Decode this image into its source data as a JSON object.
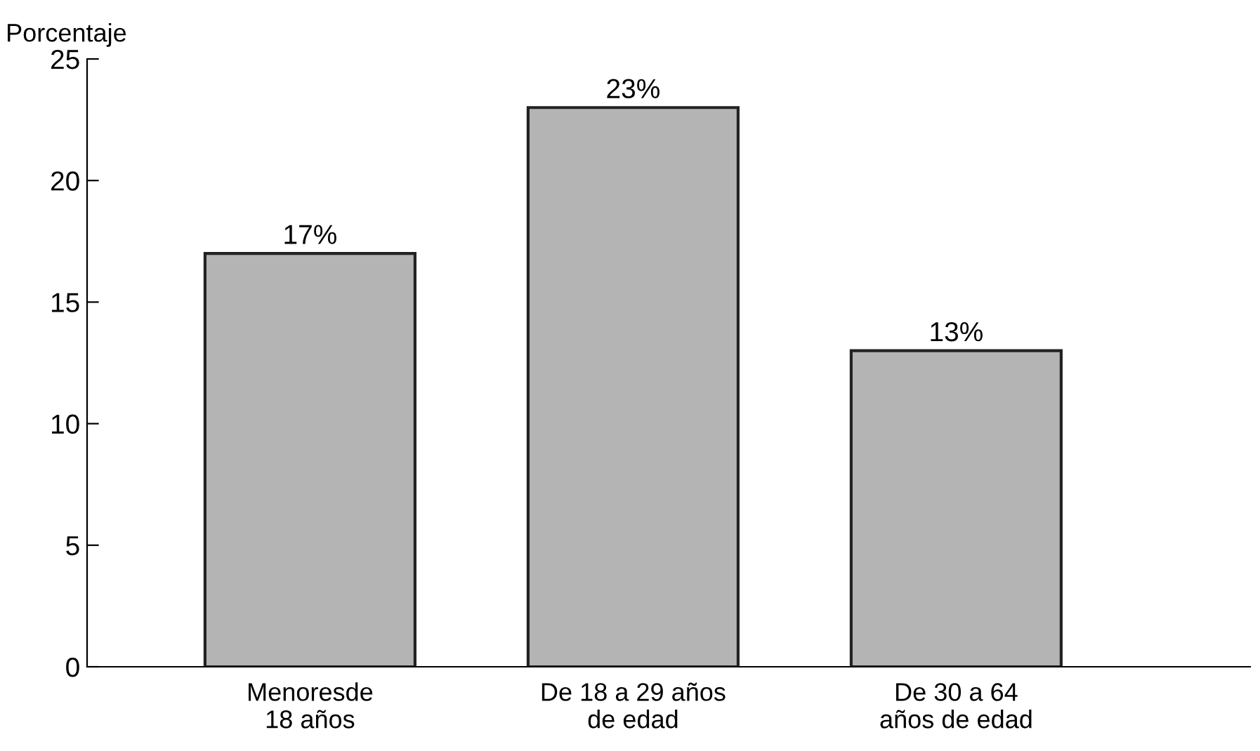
{
  "chart_data": {
    "type": "bar",
    "ylabel": "Porcentaje",
    "categories": [
      "Menoresde\n18 años",
      "De 18 a 29 años\nde edad",
      "De 30 a 64\naños de edad"
    ],
    "values": [
      17,
      23,
      13
    ],
    "color": "#b4b4b4",
    "value_labels": [
      "17%",
      "23%",
      "13%"
    ],
    "ylim": [
      0,
      25
    ],
    "yticks": [
      0,
      5,
      10,
      15,
      20,
      25
    ],
    "grid": false,
    "legend": false
  }
}
